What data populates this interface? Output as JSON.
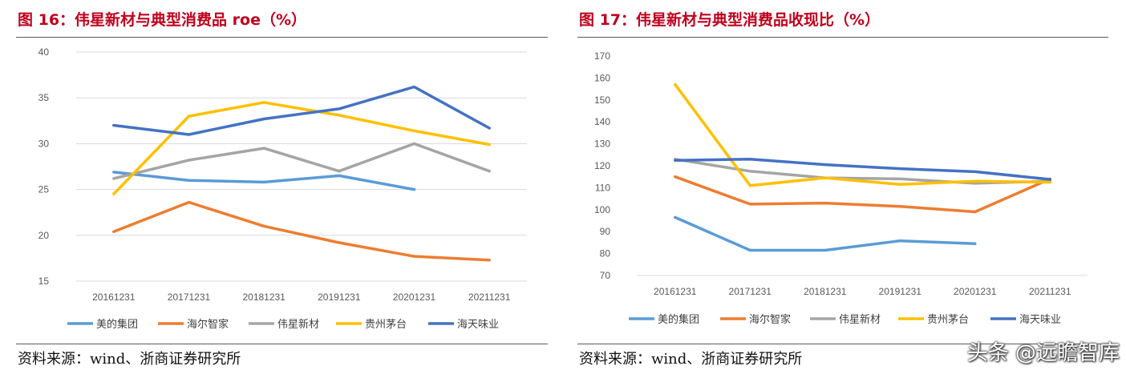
{
  "watermark": "头条 @远瞻智库",
  "chart_data": [
    {
      "type": "line",
      "title": "图 16：伟星新材与典型消费品 roe（%）",
      "source": "资料来源：wind、浙商证券研究所",
      "categories": [
        "20161231",
        "20171231",
        "20181231",
        "20191231",
        "20201231",
        "20211231"
      ],
      "ylim": [
        15,
        40
      ],
      "yticks": [
        15,
        20,
        25,
        30,
        35,
        40
      ],
      "grid": true,
      "legend_position": "bottom",
      "series": [
        {
          "name": "美的集团",
          "color": "#5b9bd5",
          "values": [
            26.9,
            26.0,
            25.8,
            26.5,
            25.0,
            null
          ]
        },
        {
          "name": "海尔智家",
          "color": "#ed7d31",
          "values": [
            20.4,
            23.6,
            21.0,
            19.2,
            17.7,
            17.3
          ]
        },
        {
          "name": "伟星新材",
          "color": "#a5a5a5",
          "values": [
            26.2,
            28.2,
            29.5,
            27.0,
            30.0,
            27.0
          ]
        },
        {
          "name": "贵州茅台",
          "color": "#ffc000",
          "values": [
            24.5,
            33.0,
            34.5,
            33.1,
            31.4,
            29.9
          ]
        },
        {
          "name": "海天味业",
          "color": "#4472c4",
          "values": [
            32.0,
            31.0,
            32.7,
            33.8,
            36.2,
            31.7
          ]
        }
      ]
    },
    {
      "type": "line",
      "title": "图 17：伟星新材与典型消费品收现比（%）",
      "source": "资料来源：wind、浙商证券研究所",
      "categories": [
        "20161231",
        "20171231",
        "20181231",
        "20191231",
        "20201231",
        "20211231"
      ],
      "ylim": [
        70,
        170
      ],
      "yticks": [
        70,
        80,
        90,
        100,
        110,
        120,
        130,
        140,
        150,
        160,
        170
      ],
      "grid": false,
      "legend_position": "bottom",
      "series": [
        {
          "name": "美的集团",
          "color": "#5b9bd5",
          "values": [
            96.5,
            81.5,
            81.5,
            85.8,
            84.5,
            null
          ]
        },
        {
          "name": "海尔智家",
          "color": "#ed7d31",
          "values": [
            115.0,
            102.5,
            103.0,
            101.5,
            99.0,
            114.0
          ]
        },
        {
          "name": "伟星新材",
          "color": "#a5a5a5",
          "values": [
            123.0,
            117.5,
            114.5,
            114.0,
            112.0,
            113.0
          ]
        },
        {
          "name": "贵州茅台",
          "color": "#ffc000",
          "values": [
            157.0,
            111.0,
            114.5,
            111.5,
            113.0,
            112.5
          ]
        },
        {
          "name": "海天味业",
          "color": "#4472c4",
          "values": [
            122.5,
            123.0,
            120.5,
            118.7,
            117.3,
            113.8
          ]
        }
      ]
    }
  ]
}
